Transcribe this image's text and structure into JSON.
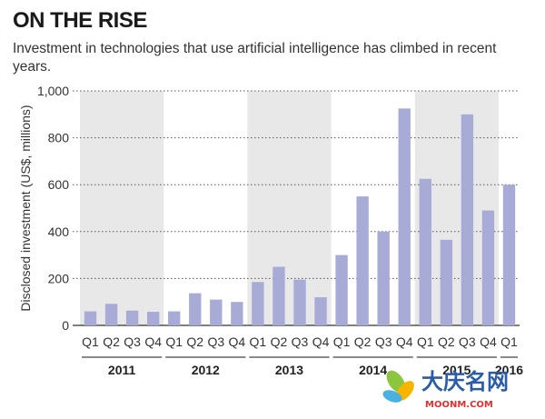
{
  "chart_data": {
    "type": "bar",
    "title": "ON THE RISE",
    "subtitle": "Investment in technologies that use artificial intelligence has climbed in recent years.",
    "xlabel": "",
    "ylabel": "Disclosed investment (US$, millions)",
    "ylim": [
      0,
      1000
    ],
    "yticks": [
      0,
      200,
      400,
      600,
      800,
      1000
    ],
    "ytick_labels": [
      "0",
      "200",
      "400",
      "600",
      "800",
      "1,000"
    ],
    "grid": true,
    "bar_color": "#a9abd7",
    "band_color": "#e8e8e8",
    "categories": [
      "Q1",
      "Q2",
      "Q3",
      "Q4",
      "Q1",
      "Q2",
      "Q3",
      "Q4",
      "Q1",
      "Q2",
      "Q3",
      "Q4",
      "Q1",
      "Q2",
      "Q3",
      "Q4",
      "Q1",
      "Q2",
      "Q3",
      "Q4",
      "Q1"
    ],
    "values": [
      60,
      92,
      63,
      58,
      60,
      137,
      110,
      100,
      185,
      250,
      195,
      120,
      300,
      550,
      400,
      925,
      625,
      365,
      900,
      490,
      600
    ],
    "groups": [
      {
        "label": "2011",
        "count": 4
      },
      {
        "label": "2012",
        "count": 4
      },
      {
        "label": "2013",
        "count": 4
      },
      {
        "label": "2014",
        "count": 4
      },
      {
        "label": "2015",
        "count": 4
      },
      {
        "label": "2016",
        "count": 1
      }
    ]
  },
  "watermark": {
    "text": "大庆名网",
    "subtext": "MOONM.COM"
  }
}
